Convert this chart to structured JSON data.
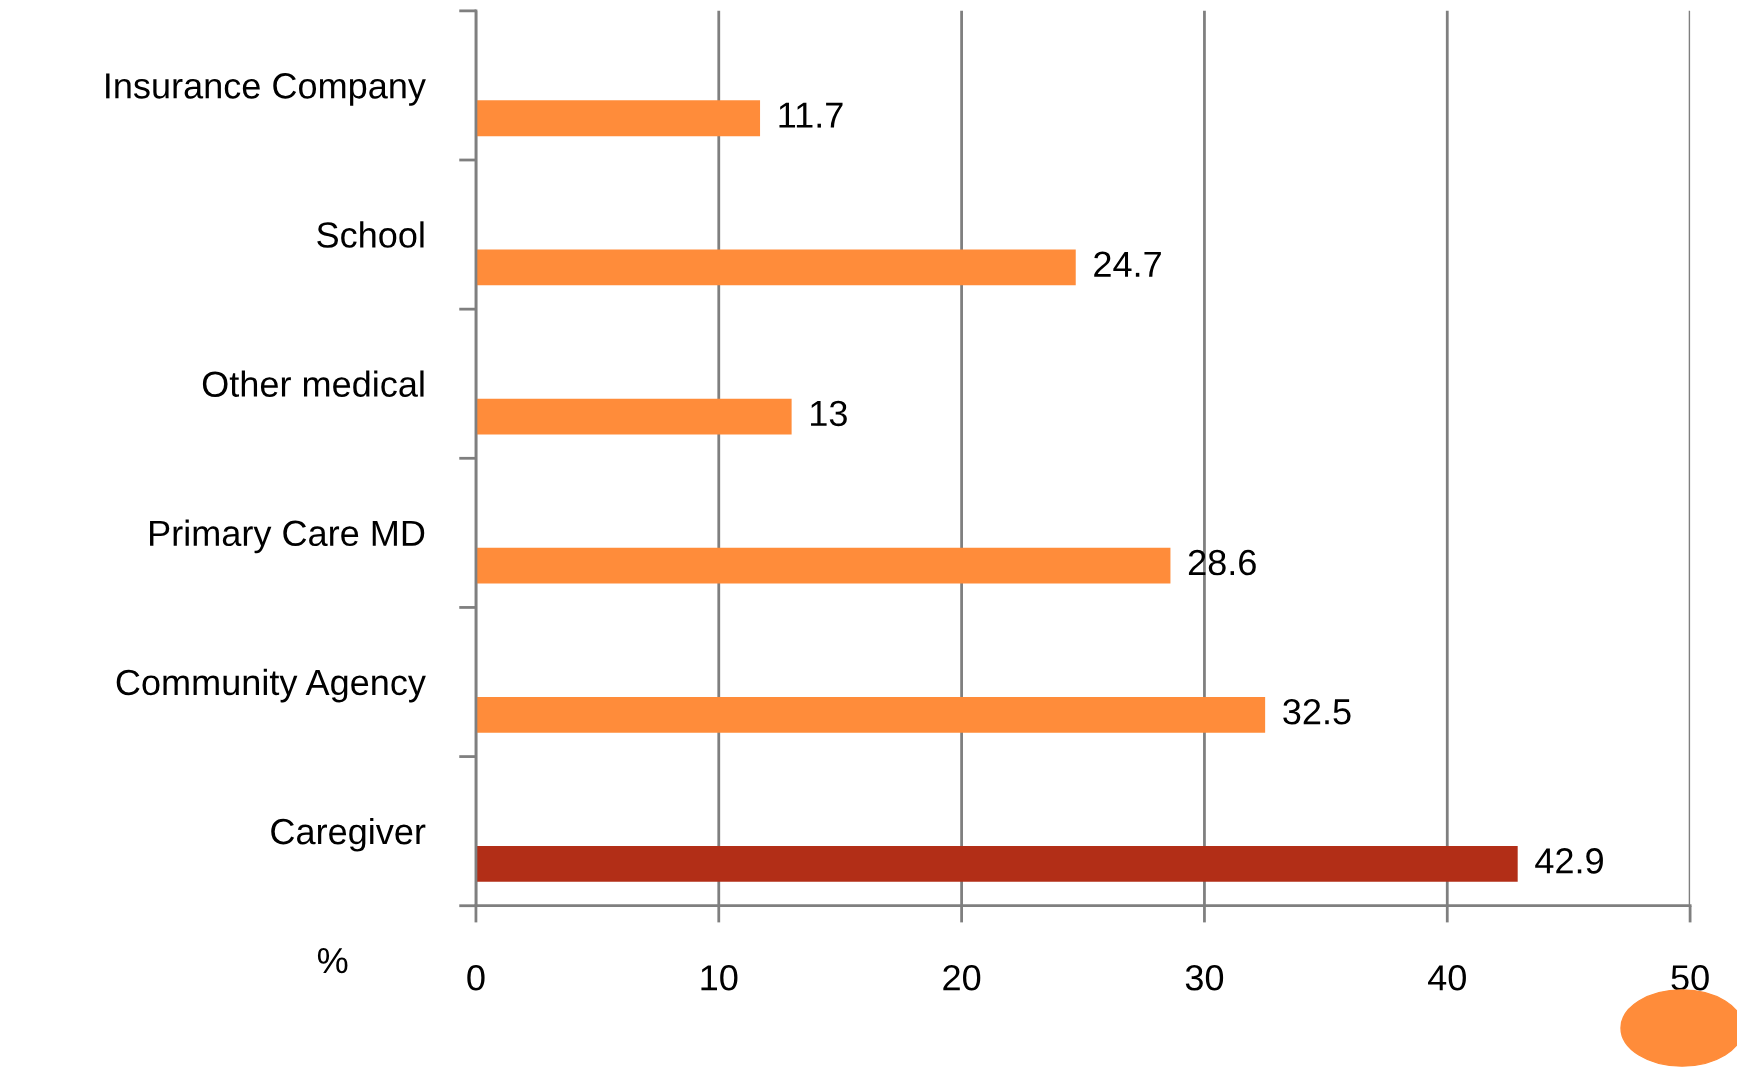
{
  "chart_data": {
    "type": "bar",
    "orientation": "horizontal",
    "xlabel": "%",
    "categories": [
      "Insurance Company",
      "School",
      "Other medical",
      "Primary Care MD",
      "Community Agency",
      "Caregiver"
    ],
    "values": [
      11.7,
      24.7,
      13,
      28.6,
      32.5,
      42.9
    ],
    "colors": [
      "#ff8c3a",
      "#ff8c3a",
      "#ff8c3a",
      "#ff8c3a",
      "#ff8c3a",
      "#b22e17"
    ],
    "xlim": [
      0,
      50
    ],
    "xticks": [
      0,
      10,
      20,
      30,
      40,
      50
    ],
    "grid": "x",
    "data_labels": true
  }
}
